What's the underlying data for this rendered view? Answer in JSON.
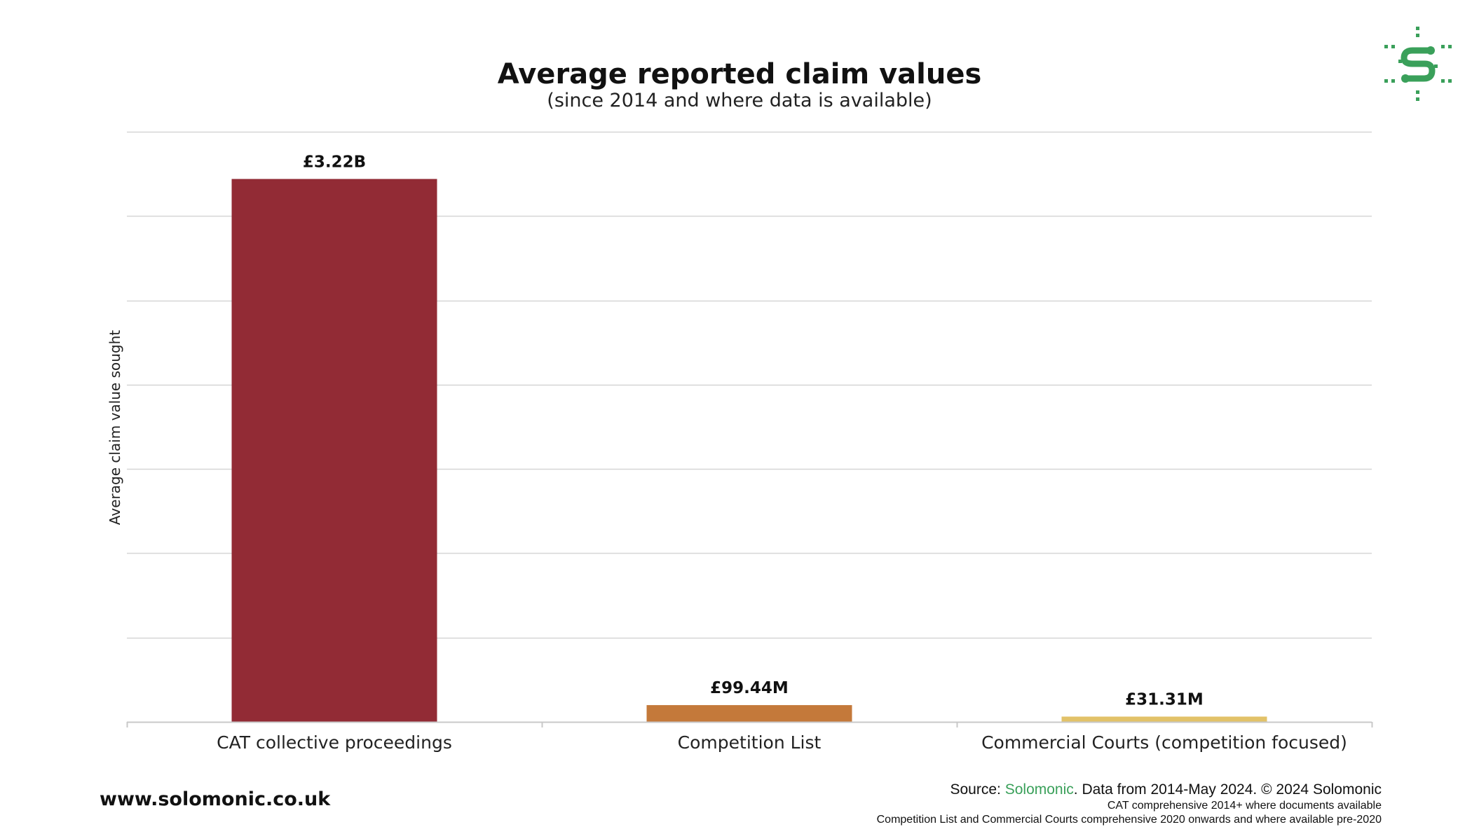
{
  "colors": {
    "bar_1": "#922b35",
    "bar_2": "#c4793a",
    "bar_3": "#e2c268",
    "grid": "#d6d6d6",
    "axis": "#c8c8c8",
    "brand_green": "#3aa05a"
  },
  "chart_data": {
    "type": "bar",
    "title": "Average reported claim values",
    "subtitle": "(since 2014 and where data is available)",
    "xlabel": "",
    "ylabel": "Average claim value sought",
    "categories": [
      "CAT collective proceedings",
      "Competition List",
      "Commercial Courts (competition focused)"
    ],
    "values": [
      3220000000,
      99440000,
      31310000
    ],
    "value_labels": [
      "£3.22B",
      "£99.44M",
      "£31.31M"
    ],
    "ylim": [
      0,
      3500000000
    ],
    "grid": true,
    "legend": "none"
  },
  "footer": {
    "website": "www.solomonic.co.uk",
    "source_prefix": "Source: ",
    "source_brand": "Solomonic",
    "source_suffix": ". Data from 2014-May 2024. © 2024 Solomonic",
    "note_1": "CAT comprehensive 2014+ where documents available",
    "note_2": "Competition List and Commercial Courts comprehensive 2020 onwards and where available pre-2020"
  },
  "logo": {
    "icon": "solomonic-logo-icon"
  }
}
